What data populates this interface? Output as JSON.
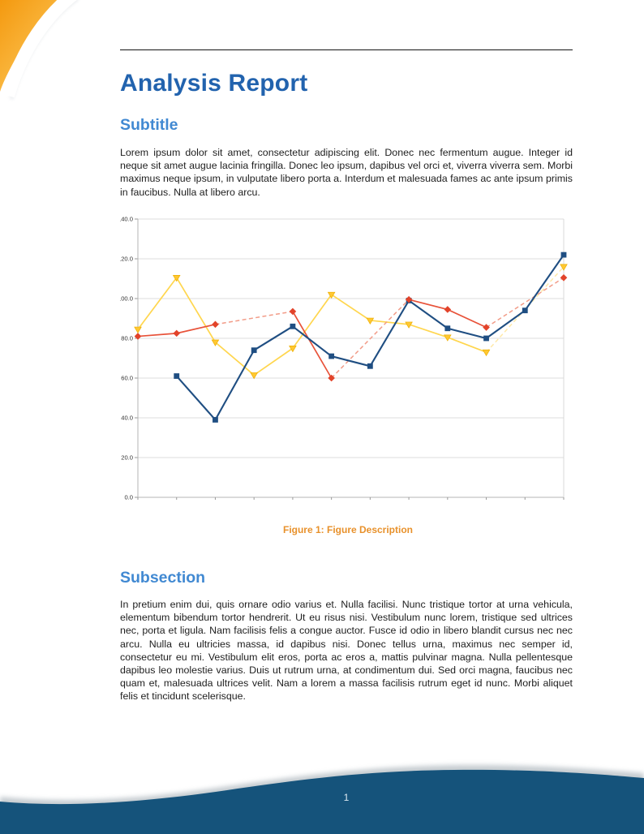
{
  "header": {
    "title": "Analysis Report"
  },
  "sections": [
    {
      "heading": "Subtitle",
      "paragraph": "Lorem ipsum dolor sit amet, consectetur adipiscing elit.  Donec nec fermentum augue.  Integer id neque sit amet augue lacinia fringilla.  Donec leo ipsum, dapibus vel orci et, viverra viverra sem.  Morbi maximus neque ipsum, in vulputate libero porta a.  Interdum et malesuada fames ac ante ipsum primis in faucibus.  Nulla at libero arcu."
    },
    {
      "heading": "Subsection",
      "paragraph": "In pretium enim dui, quis ornare odio varius et.  Nulla facilisi.  Nunc tristique tortor at urna vehicula, elementum bibendum tortor hendrerit.  Ut eu risus nisi.  Vestibulum nunc lorem, tristique sed ultrices nec, porta et ligula.  Nam facilisis felis a congue auctor.  Fusce id odio in libero blandit cursus nec nec arcu.  Nulla eu ultricies massa, id dapibus nisi.  Donec tellus urna, maximus nec semper id, consectetur eu mi.  Vestibulum elit eros, porta ac eros a, mattis pulvinar magna.  Nulla pellentesque dapibus leo molestie varius.  Duis ut rutrum urna, at condimentum dui.  Sed orci magna, faucibus nec quam et, malesuada ultrices velit.  Nam a lorem a massa facilisis rutrum eget id nunc.  Morbi aliquet felis et tincidunt scelerisque."
    }
  ],
  "figure": {
    "caption": "Figure 1: Figure Description"
  },
  "footer": {
    "page_number": "1"
  },
  "colors": {
    "title-blue": "#2263ae",
    "heading-blue": "#4189d2",
    "caption-orange": "#e8912b",
    "footer-blue": "#15537b",
    "corner-orange": "#f6a01b",
    "corner-orange-light": "#fed26c"
  },
  "chart_data": {
    "type": "line",
    "title": "",
    "xlabel": "",
    "ylabel": "",
    "x": [
      1,
      2,
      3,
      4,
      5,
      6,
      7,
      8,
      9,
      10,
      11,
      12
    ],
    "x_tick_labels_visible": false,
    "ylim": [
      0,
      140
    ],
    "y_tick_step": 20,
    "y_tick_labels": [
      "0.0",
      "20.0",
      "40.0",
      "60.0",
      "80.0",
      "100.0",
      "120.0",
      "140.0"
    ],
    "grid": "horizontal",
    "legend": "none",
    "gap_style": "missing values bridged with dashed lighter segments",
    "series": [
      {
        "name": "series-yellow",
        "marker": "triangle-down",
        "color": "#ffd64e",
        "marker_color": "#ffc832",
        "marker_edge": "#eeae00",
        "dash_color": "#ffe9a8",
        "line_width": 1.7,
        "values": [
          84.5,
          110.5,
          78,
          61.5,
          75,
          102,
          89,
          87,
          80.5,
          73,
          null,
          116
        ]
      },
      {
        "name": "series-red",
        "marker": "diamond",
        "color": "#e85239",
        "marker_color": "#e2432a",
        "marker_edge": "#e2432a",
        "dash_color": "#f29c88",
        "line_width": 1.7,
        "values": [
          81,
          82.5,
          87,
          null,
          93.5,
          60,
          null,
          99.5,
          94.5,
          85.5,
          null,
          110.5
        ]
      },
      {
        "name": "series-blue",
        "marker": "square",
        "color": "#1f4e82",
        "marker_color": "#1f4e82",
        "marker_edge": "#1f4e82",
        "dash_color": "#7f9cc0",
        "line_width": 2.1,
        "values": [
          null,
          61,
          39,
          74,
          86,
          71,
          66,
          99,
          85,
          80,
          94,
          122
        ]
      }
    ]
  }
}
